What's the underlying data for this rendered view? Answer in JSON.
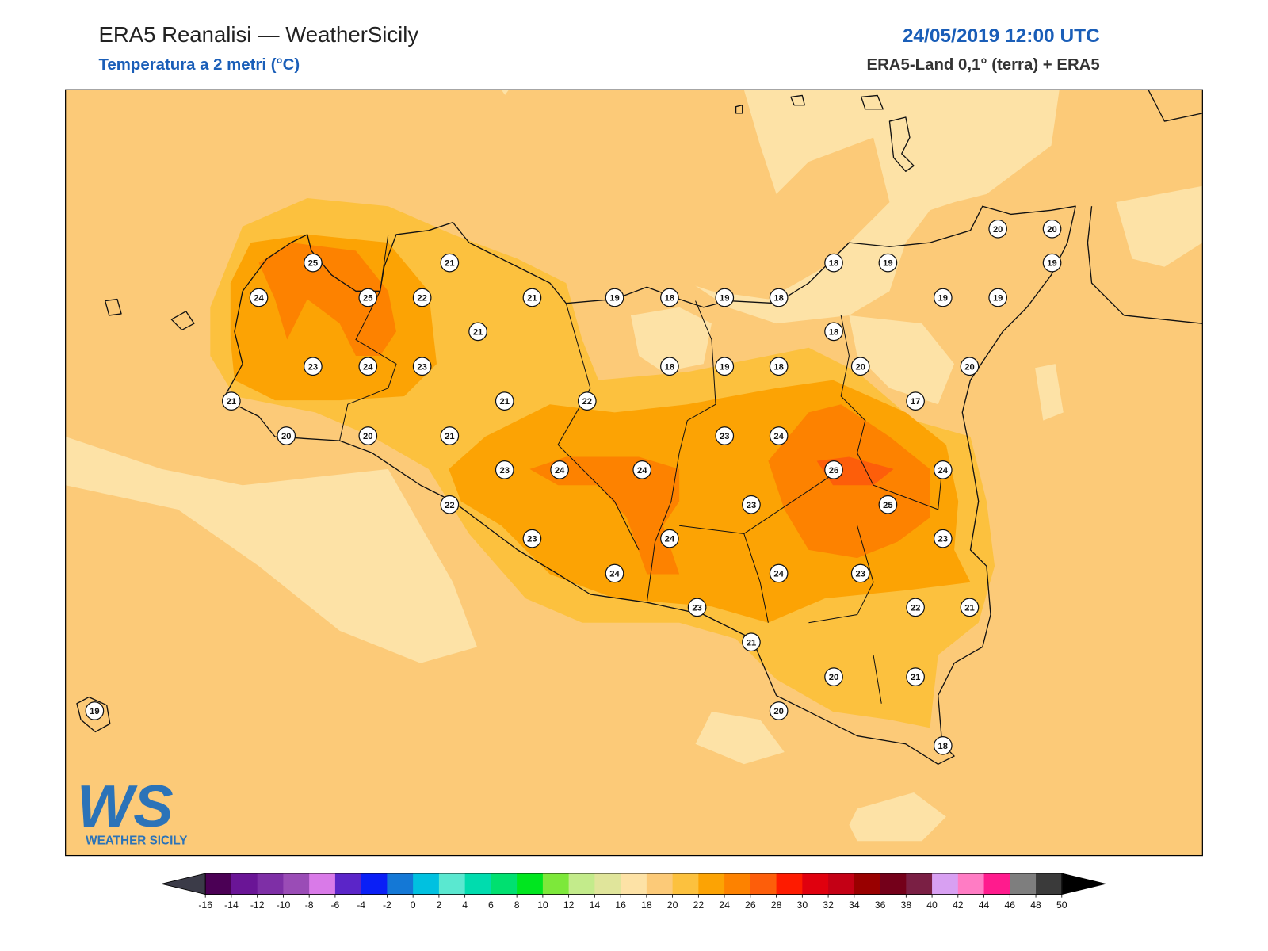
{
  "header": {
    "title": "ERA5 Reanalisi — WeatherSicily",
    "subtitle": "Temperatura a 2 metri (°C)",
    "datetime": "24/05/2019 12:00 UTC",
    "source": "ERA5-Land 0,1° (terra) + ERA5"
  },
  "stations": [
    25,
    21,
    24,
    25,
    22,
    21,
    19,
    18,
    19,
    18,
    18,
    19,
    20,
    20,
    19,
    19,
    19,
    21,
    18,
    23,
    24,
    23,
    18,
    19,
    18,
    20,
    20,
    21,
    21,
    22,
    17,
    20,
    20,
    21,
    23,
    24,
    23,
    24,
    24,
    26,
    24,
    22,
    23,
    25,
    23,
    24,
    23,
    24,
    24,
    23,
    23,
    22,
    21,
    21,
    20,
    21,
    20,
    18,
    19
  ],
  "logo": {
    "text": "WS",
    "caption": "WEATHER SICILY"
  },
  "colorbar": {
    "ticks": [
      -16,
      -14,
      -12,
      -10,
      -8,
      -6,
      -4,
      -2,
      0,
      2,
      4,
      6,
      8,
      10,
      12,
      14,
      16,
      18,
      20,
      22,
      24,
      26,
      28,
      30,
      32,
      34,
      36,
      38,
      40,
      42,
      44,
      46,
      48,
      50
    ],
    "colors": [
      "#4b0055",
      "#6a1596",
      "#7e2fa6",
      "#9a4cb6",
      "#d97ae8",
      "#5b25c8",
      "#0a1ff6",
      "#1478d6",
      "#00c1e0",
      "#5ae8d0",
      "#00dcae",
      "#00e070",
      "#00e61f",
      "#7de83a",
      "#c3eb8b",
      "#e0e59b",
      "#fde2a6",
      "#fcca78",
      "#fcc13e",
      "#fca304",
      "#fd8200",
      "#fd5e0a",
      "#fe1b00",
      "#e0000e",
      "#c40015",
      "#990000",
      "#74001a",
      "#7a1f44",
      "#d8a0f2",
      "#ff7cc4",
      "#ff1b8d",
      "#7e7e7e",
      "#3a3a3a"
    ],
    "under_color": "#3b3b48",
    "over_color": "#000000"
  }
}
